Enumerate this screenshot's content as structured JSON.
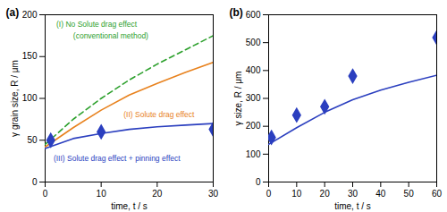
{
  "chart_data": [
    {
      "type": "line",
      "title": "(a)",
      "x_label": "time, t / s",
      "y_label": "γ grain size, R / μm",
      "xlim": [
        0,
        30
      ],
      "xticks": [
        0,
        10,
        20,
        30
      ],
      "ylim": [
        0,
        200
      ],
      "yticks": [
        0,
        50,
        100,
        150,
        200
      ],
      "grid": false,
      "series": [
        {
          "type": "line",
          "color": "#2ca02c",
          "line_style": "dashed",
          "x": [
            0,
            5,
            10,
            15,
            20,
            25,
            30
          ],
          "values": [
            45,
            75,
            100,
            122,
            141,
            158,
            175
          ]
        },
        {
          "type": "line",
          "color": "#e8821e",
          "line_style": "solid",
          "x": [
            0,
            5,
            10,
            15,
            20,
            25,
            30
          ],
          "values": [
            42,
            65,
            86,
            104,
            118,
            131,
            143
          ]
        },
        {
          "type": "line",
          "color": "#2b3fbf",
          "line_style": "solid",
          "x": [
            0,
            5,
            10,
            15,
            20,
            25,
            30
          ],
          "values": [
            40,
            52,
            58,
            63,
            66,
            68,
            70
          ]
        },
        {
          "type": "scatter",
          "color": "#2b3fbf",
          "marker": "diamond",
          "x": [
            1,
            10,
            30
          ],
          "values": [
            50,
            60,
            63
          ]
        }
      ],
      "annotations": [
        {
          "text": "(I) No Solute drag effect",
          "x": 2,
          "y": 188,
          "color": "#2ca02c"
        },
        {
          "text": "(conventional method)",
          "x": 5,
          "y": 175,
          "color": "#2ca02c"
        },
        {
          "text": "(II) Solute drag effect",
          "x": 14,
          "y": 80,
          "color": "#e8821e"
        },
        {
          "text": "(III) Solute drag effect + pinning effect",
          "x": 1.5,
          "y": 28,
          "color": "#2b3fbf"
        }
      ]
    },
    {
      "type": "line",
      "title": "(b)",
      "x_label": "time, t / s",
      "y_label": "γ size, R / μm",
      "xlim": [
        0,
        60
      ],
      "xticks": [
        0,
        10,
        20,
        30,
        40,
        50,
        60
      ],
      "ylim": [
        0,
        600
      ],
      "yticks": [
        0,
        100,
        200,
        300,
        400,
        500,
        600
      ],
      "grid": false,
      "series": [
        {
          "type": "line",
          "color": "#2b3fbf",
          "line_style": "solid",
          "x": [
            0,
            10,
            20,
            30,
            40,
            50,
            60
          ],
          "values": [
            135,
            195,
            250,
            295,
            330,
            358,
            383
          ]
        },
        {
          "type": "scatter",
          "color": "#2b3fbf",
          "marker": "diamond",
          "x": [
            1,
            10,
            20,
            30,
            60
          ],
          "values": [
            160,
            240,
            270,
            380,
            518
          ]
        }
      ]
    }
  ]
}
